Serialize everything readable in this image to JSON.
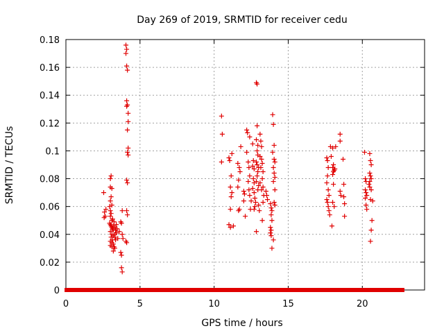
{
  "chart_data": {
    "type": "scatter",
    "title": "Day 269 of 2019, SRMTID for receiver cedu",
    "xlabel": "GPS time / hours",
    "ylabel": "SRMTID / TECUs",
    "xlim": [
      0,
      24.2
    ],
    "ylim": [
      0,
      0.18
    ],
    "xticks": [
      0,
      5,
      10,
      15,
      20
    ],
    "yticks": [
      0,
      0.02,
      0.04,
      0.06,
      0.08,
      0.1,
      0.12,
      0.14,
      0.16,
      0.18
    ],
    "xtick_labels": [
      "0",
      "5",
      "10",
      "15",
      "20"
    ],
    "ytick_labels": [
      "0",
      "0.02",
      "0.04",
      "0.06",
      "0.08",
      "0.1",
      "0.12",
      "0.14",
      "0.16",
      "0.18"
    ],
    "grid": true,
    "marker": "+",
    "color": "#e00000",
    "baseline_segments": [
      [
        0.05,
        2.6
      ],
      [
        2.75,
        4.15
      ],
      [
        4.35,
        10.45
      ],
      [
        10.6,
        12.75
      ],
      [
        13.0,
        13.15
      ],
      [
        13.3,
        16.55
      ],
      [
        16.7,
        17.7
      ],
      [
        17.85,
        18.1
      ],
      [
        18.25,
        19.75
      ],
      [
        19.9,
        20.05
      ],
      [
        20.2,
        22.7
      ]
    ],
    "series": [
      {
        "name": "SRMTID",
        "points": [
          [
            2.55,
            0.07
          ],
          [
            2.6,
            0.056
          ],
          [
            2.58,
            0.052
          ],
          [
            2.65,
            0.053
          ],
          [
            2.7,
            0.058
          ],
          [
            3.0,
            0.08
          ],
          [
            3.05,
            0.082
          ],
          [
            3.0,
            0.074
          ],
          [
            3.1,
            0.073
          ],
          [
            3.05,
            0.067
          ],
          [
            3.0,
            0.064
          ],
          [
            3.1,
            0.061
          ],
          [
            2.95,
            0.06
          ],
          [
            3.0,
            0.057
          ],
          [
            3.05,
            0.055
          ],
          [
            3.0,
            0.053
          ],
          [
            3.1,
            0.05
          ],
          [
            2.95,
            0.048
          ],
          [
            3.0,
            0.047
          ],
          [
            3.05,
            0.046
          ],
          [
            3.1,
            0.045
          ],
          [
            3.15,
            0.044
          ],
          [
            3.2,
            0.043
          ],
          [
            3.0,
            0.042
          ],
          [
            3.1,
            0.04
          ],
          [
            3.2,
            0.039
          ],
          [
            3.05,
            0.038
          ],
          [
            3.15,
            0.036
          ],
          [
            3.0,
            0.035
          ],
          [
            3.1,
            0.034
          ],
          [
            3.2,
            0.033
          ],
          [
            3.25,
            0.031
          ],
          [
            3.3,
            0.03
          ],
          [
            3.2,
            0.028
          ],
          [
            3.0,
            0.032
          ],
          [
            3.3,
            0.045
          ],
          [
            3.35,
            0.043
          ],
          [
            3.4,
            0.041
          ],
          [
            3.3,
            0.038
          ],
          [
            3.35,
            0.036
          ],
          [
            3.4,
            0.047
          ],
          [
            3.25,
            0.049
          ],
          [
            3.15,
            0.051
          ],
          [
            3.3,
            0.04
          ],
          [
            3.45,
            0.044
          ],
          [
            3.5,
            0.037
          ],
          [
            3.2,
            0.046
          ],
          [
            3.1,
            0.031
          ],
          [
            3.6,
            0.042
          ],
          [
            3.7,
            0.049
          ],
          [
            3.75,
            0.048
          ],
          [
            3.8,
            0.057
          ],
          [
            3.8,
            0.04
          ],
          [
            3.85,
            0.037
          ],
          [
            3.75,
            0.016
          ],
          [
            3.8,
            0.013
          ],
          [
            3.7,
            0.027
          ],
          [
            3.75,
            0.025
          ],
          [
            4.05,
            0.035
          ],
          [
            4.1,
            0.034
          ],
          [
            4.1,
            0.057
          ],
          [
            4.15,
            0.054
          ],
          [
            4.05,
            0.176
          ],
          [
            4.1,
            0.173
          ],
          [
            4.05,
            0.17
          ],
          [
            4.1,
            0.161
          ],
          [
            4.15,
            0.158
          ],
          [
            4.1,
            0.136
          ],
          [
            4.15,
            0.133
          ],
          [
            4.1,
            0.132
          ],
          [
            4.2,
            0.127
          ],
          [
            4.2,
            0.121
          ],
          [
            4.15,
            0.115
          ],
          [
            4.2,
            0.102
          ],
          [
            4.15,
            0.099
          ],
          [
            4.2,
            0.097
          ],
          [
            4.1,
            0.079
          ],
          [
            4.15,
            0.077
          ],
          [
            10.5,
            0.125
          ],
          [
            10.55,
            0.112
          ],
          [
            10.5,
            0.092
          ],
          [
            11.0,
            0.095
          ],
          [
            11.05,
            0.093
          ],
          [
            11.2,
            0.098
          ],
          [
            11.15,
            0.082
          ],
          [
            11.1,
            0.074
          ],
          [
            11.2,
            0.07
          ],
          [
            11.15,
            0.067
          ],
          [
            11.1,
            0.058
          ],
          [
            11.0,
            0.047
          ],
          [
            11.1,
            0.045
          ],
          [
            11.3,
            0.046
          ],
          [
            11.6,
            0.091
          ],
          [
            11.7,
            0.088
          ],
          [
            11.75,
            0.085
          ],
          [
            11.65,
            0.079
          ],
          [
            11.6,
            0.074
          ],
          [
            11.7,
            0.058
          ],
          [
            11.65,
            0.057
          ],
          [
            11.8,
            0.103
          ],
          [
            12.0,
            0.071
          ],
          [
            12.05,
            0.069
          ],
          [
            12.0,
            0.064
          ],
          [
            12.1,
            0.053
          ],
          [
            12.2,
            0.115
          ],
          [
            12.25,
            0.113
          ],
          [
            12.2,
            0.099
          ],
          [
            12.3,
            0.092
          ],
          [
            12.35,
            0.088
          ],
          [
            12.4,
            0.082
          ],
          [
            12.3,
            0.078
          ],
          [
            12.35,
            0.072
          ],
          [
            12.4,
            0.068
          ],
          [
            12.5,
            0.064
          ],
          [
            12.45,
            0.058
          ],
          [
            12.4,
            0.11
          ],
          [
            12.6,
            0.105
          ],
          [
            12.65,
            0.093
          ],
          [
            12.6,
            0.089
          ],
          [
            12.7,
            0.087
          ],
          [
            12.65,
            0.08
          ],
          [
            12.7,
            0.077
          ],
          [
            12.6,
            0.073
          ],
          [
            12.7,
            0.07
          ],
          [
            12.75,
            0.066
          ],
          [
            12.8,
            0.063
          ],
          [
            12.75,
            0.06
          ],
          [
            12.7,
            0.058
          ],
          [
            12.85,
            0.149
          ],
          [
            12.9,
            0.148
          ],
          [
            12.9,
            0.118
          ],
          [
            12.85,
            0.108
          ],
          [
            12.95,
            0.104
          ],
          [
            12.9,
            0.1
          ],
          [
            12.95,
            0.097
          ],
          [
            12.85,
            0.092
          ],
          [
            12.9,
            0.09
          ],
          [
            13.0,
            0.088
          ],
          [
            12.95,
            0.085
          ],
          [
            12.9,
            0.082
          ],
          [
            12.85,
            0.078
          ],
          [
            13.0,
            0.075
          ],
          [
            12.95,
            0.072
          ],
          [
            12.85,
            0.042
          ],
          [
            13.0,
            0.061
          ],
          [
            13.05,
            0.057
          ],
          [
            13.1,
            0.112
          ],
          [
            13.15,
            0.107
          ],
          [
            13.2,
            0.103
          ],
          [
            13.1,
            0.096
          ],
          [
            13.2,
            0.094
          ],
          [
            13.25,
            0.091
          ],
          [
            13.15,
            0.088
          ],
          [
            13.3,
            0.085
          ],
          [
            13.25,
            0.08
          ],
          [
            13.1,
            0.077
          ],
          [
            13.3,
            0.074
          ],
          [
            13.2,
            0.072
          ],
          [
            13.35,
            0.068
          ],
          [
            13.3,
            0.063
          ],
          [
            13.25,
            0.05
          ],
          [
            13.5,
            0.071
          ],
          [
            13.55,
            0.068
          ],
          [
            13.6,
            0.065
          ],
          [
            13.8,
            0.062
          ],
          [
            13.85,
            0.059
          ],
          [
            13.9,
            0.057
          ],
          [
            13.85,
            0.054
          ],
          [
            13.9,
            0.05
          ],
          [
            13.8,
            0.045
          ],
          [
            13.85,
            0.043
          ],
          [
            13.8,
            0.041
          ],
          [
            13.85,
            0.039
          ],
          [
            13.9,
            0.03
          ],
          [
            13.95,
            0.126
          ],
          [
            14.0,
            0.119
          ],
          [
            14.05,
            0.104
          ],
          [
            13.95,
            0.099
          ],
          [
            14.05,
            0.094
          ],
          [
            14.1,
            0.092
          ],
          [
            14.0,
            0.088
          ],
          [
            14.05,
            0.084
          ],
          [
            14.1,
            0.081
          ],
          [
            14.0,
            0.078
          ],
          [
            14.1,
            0.072
          ],
          [
            14.05,
            0.063
          ],
          [
            14.1,
            0.061
          ],
          [
            14.0,
            0.036
          ],
          [
            17.6,
            0.095
          ],
          [
            17.65,
            0.093
          ],
          [
            17.7,
            0.088
          ],
          [
            17.65,
            0.082
          ],
          [
            17.6,
            0.077
          ],
          [
            17.7,
            0.072
          ],
          [
            17.75,
            0.068
          ],
          [
            17.6,
            0.065
          ],
          [
            17.65,
            0.063
          ],
          [
            17.7,
            0.06
          ],
          [
            17.75,
            0.057
          ],
          [
            17.8,
            0.054
          ],
          [
            17.85,
            0.103
          ],
          [
            17.9,
            0.096
          ],
          [
            18.0,
            0.102
          ],
          [
            18.05,
            0.09
          ],
          [
            18.0,
            0.088
          ],
          [
            18.1,
            0.086
          ],
          [
            18.05,
            0.085
          ],
          [
            18.0,
            0.083
          ],
          [
            18.05,
            0.076
          ],
          [
            18.0,
            0.063
          ],
          [
            18.1,
            0.06
          ],
          [
            17.95,
            0.046
          ],
          [
            18.2,
            0.103
          ],
          [
            18.15,
            0.087
          ],
          [
            18.5,
            0.112
          ],
          [
            18.5,
            0.107
          ],
          [
            18.5,
            0.071
          ],
          [
            18.55,
            0.068
          ],
          [
            18.7,
            0.094
          ],
          [
            18.75,
            0.076
          ],
          [
            18.75,
            0.067
          ],
          [
            18.8,
            0.062
          ],
          [
            18.8,
            0.053
          ],
          [
            20.15,
            0.099
          ],
          [
            20.2,
            0.08
          ],
          [
            20.25,
            0.078
          ],
          [
            20.2,
            0.072
          ],
          [
            20.25,
            0.07
          ],
          [
            20.3,
            0.068
          ],
          [
            20.2,
            0.066
          ],
          [
            20.25,
            0.061
          ],
          [
            20.3,
            0.058
          ],
          [
            20.5,
            0.098
          ],
          [
            20.55,
            0.093
          ],
          [
            20.6,
            0.09
          ],
          [
            20.5,
            0.084
          ],
          [
            20.55,
            0.082
          ],
          [
            20.6,
            0.08
          ],
          [
            20.5,
            0.078
          ],
          [
            20.45,
            0.076
          ],
          [
            20.5,
            0.074
          ],
          [
            20.6,
            0.072
          ],
          [
            20.55,
            0.065
          ],
          [
            20.7,
            0.064
          ],
          [
            20.65,
            0.05
          ],
          [
            20.6,
            0.043
          ],
          [
            20.55,
            0.035
          ]
        ]
      }
    ]
  }
}
